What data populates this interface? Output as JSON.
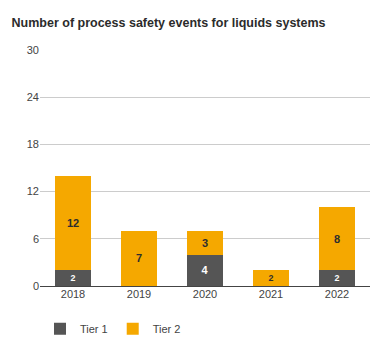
{
  "chart_data": {
    "type": "bar",
    "title": "Number of process safety events for liquids systems",
    "categories": [
      "2018",
      "2019",
      "2020",
      "2021",
      "2022"
    ],
    "series": [
      {
        "name": "Tier 1",
        "color": "#555555",
        "values": [
          2,
          0,
          4,
          0,
          2
        ]
      },
      {
        "name": "Tier 2",
        "color": "#f5a800",
        "values": [
          12,
          7,
          3,
          2,
          8
        ]
      }
    ],
    "stacked": true,
    "data_labels": true,
    "grid": true,
    "legend": "bottom",
    "ylim": [
      0,
      30
    ],
    "yticks": [
      0,
      6,
      12,
      18,
      24,
      30
    ]
  }
}
